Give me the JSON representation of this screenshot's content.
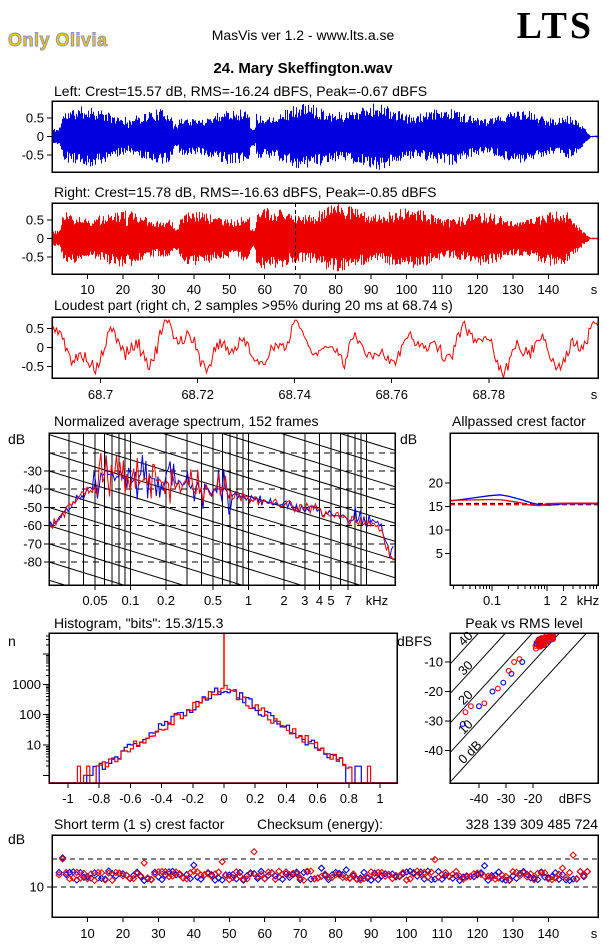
{
  "header": {
    "logo": "Only Olivia",
    "version_line": "MasVis ver 1.2 - www.lts.a.se",
    "brand": "LTS",
    "song_title": "24. Mary Skeffington.wav"
  },
  "colors": {
    "left_channel": "#0000e0",
    "right_channel": "#ee0000",
    "axis": "#000000",
    "logo_fill": "#f2c414",
    "logo_outline": "#8a93b5"
  },
  "chart_data": [
    {
      "id": "wave_left",
      "type": "waveform",
      "channel": "left",
      "label": "Left: Crest=15.57 dB, RMS=-16.24 dBFS, Peak=-0.67 dBFS",
      "stats": {
        "crest_db": 15.57,
        "rms_dbfs": -16.24,
        "peak_dbfs": -0.67
      },
      "yticks": [
        "0.5",
        "0",
        "-0.5"
      ],
      "ylim": [
        -0.95,
        0.95
      ],
      "duration_s": 154,
      "seed": 11,
      "envelope": {
        "intro_amp": 0.17,
        "intro_end_s": 3,
        "base_amp": 0.52,
        "dips": [
          [
            20.6,
            21.6,
            0.74
          ],
          [
            34.0,
            35.6,
            0.52
          ],
          [
            55.6,
            57.4,
            0.44
          ]
        ],
        "fade_start_s": 145.5,
        "end_amp": 0.02
      }
    },
    {
      "id": "wave_right",
      "type": "waveform",
      "channel": "right",
      "label": "Right: Crest=15.78 dB, RMS=-16.63 dBFS, Peak=-0.85 dBFS",
      "stats": {
        "crest_db": 15.78,
        "rms_dbfs": -16.63,
        "peak_dbfs": -0.85
      },
      "yticks": [
        "0.5",
        "0",
        "-0.5"
      ],
      "ylim": [
        -0.95,
        0.95
      ],
      "duration_s": 154,
      "seed": 77,
      "cursor_s": 68.74,
      "xticks": [
        10,
        20,
        30,
        40,
        50,
        60,
        70,
        80,
        90,
        100,
        110,
        120,
        130,
        140
      ],
      "x_unit": "s",
      "envelope": {
        "intro_amp": 0.17,
        "intro_end_s": 3,
        "base_amp": 0.52,
        "dips": [
          [
            20.6,
            21.6,
            0.76
          ],
          [
            34.0,
            35.6,
            0.55
          ],
          [
            55.6,
            57.4,
            0.46
          ]
        ],
        "fade_start_s": 145.5,
        "end_amp": 0.02
      }
    },
    {
      "id": "loudest",
      "type": "line",
      "title": "Loudest part (right ch, 2 samples >95% during 20 ms at 68.74 s)",
      "yticks": [
        "0.5",
        "0",
        "-0.5"
      ],
      "ylim": [
        -0.95,
        0.95
      ],
      "t_start": 68.69,
      "t_end": 68.8025,
      "xtick_labels": [
        "68.7",
        "68.72",
        "68.74",
        "68.76",
        "68.78"
      ],
      "xtick_values": [
        68.7,
        68.72,
        68.74,
        68.76,
        68.78
      ],
      "x_unit": "s",
      "seed": 5,
      "max_peak": 0.68,
      "min_peak": -0.85
    },
    {
      "id": "spectrum",
      "type": "line",
      "title": "Normalized average spectrum, 152 frames",
      "ylabel": "dB",
      "yticks": [
        -30,
        -40,
        -50,
        -60,
        -70,
        -80
      ],
      "ylim": [
        -93,
        -9
      ],
      "grid_dashed_db": [
        -20,
        -30,
        -40,
        -50,
        -60,
        -70,
        -80
      ],
      "xtick_labels": [
        "0.05",
        "0.1",
        "0.2",
        "0.5",
        "1",
        "2",
        "3",
        "4",
        "5",
        "7"
      ],
      "xtick_values": [
        0.05,
        0.1,
        0.2,
        0.5,
        1,
        2,
        3,
        4,
        5,
        7
      ],
      "x_unit": "kHz",
      "f_min": 0.0204,
      "f_max": 17.4,
      "diagonal_slope_db_per_decade": -20,
      "diagonal_spacing_db": 10,
      "anchors_khz_db": [
        [
          0.02,
          -61
        ],
        [
          0.028,
          -53
        ],
        [
          0.038,
          -44
        ],
        [
          0.05,
          -37
        ],
        [
          0.06,
          -33
        ],
        [
          0.1,
          -34
        ],
        [
          0.16,
          -35
        ],
        [
          0.25,
          -37
        ],
        [
          0.4,
          -40
        ],
        [
          0.63,
          -42
        ],
        [
          1,
          -45
        ],
        [
          1.6,
          -47
        ],
        [
          2.2,
          -49
        ],
        [
          3.2,
          -50
        ],
        [
          5,
          -54
        ],
        [
          8,
          -57
        ],
        [
          10.5,
          -59
        ],
        [
          12,
          -58
        ],
        [
          13.5,
          -62
        ],
        [
          15,
          -72
        ],
        [
          17.4,
          -83
        ]
      ],
      "seed": 5
    },
    {
      "id": "allpassed",
      "type": "line",
      "title": "Allpassed crest factor",
      "ylabel": "dB",
      "yticks": [
        20,
        15,
        10,
        5
      ],
      "ylim": [
        0,
        30
      ],
      "xtick_labels": [
        "0.1",
        "1",
        "2"
      ],
      "xtick_values": [
        0.1,
        1,
        2
      ],
      "x_unit": "kHz",
      "f_min": 0.0172,
      "f_max": 8.45,
      "series": {
        "blue": [
          [
            0.018,
            16.2
          ],
          [
            0.05,
            16.9
          ],
          [
            0.09,
            17.3
          ],
          [
            0.14,
            17.5
          ],
          [
            0.2,
            17.2
          ],
          [
            0.35,
            16.4
          ],
          [
            0.55,
            15.7
          ],
          [
            0.8,
            15.3
          ],
          [
            1.2,
            15.3
          ],
          [
            2,
            15.6
          ],
          [
            8.4,
            15.6
          ]
        ],
        "red": [
          [
            0.018,
            16.3
          ],
          [
            0.05,
            16.4
          ],
          [
            0.1,
            16.5
          ],
          [
            0.15,
            16.4
          ],
          [
            0.3,
            15.9
          ],
          [
            0.5,
            15.3
          ],
          [
            0.75,
            15.2
          ],
          [
            1,
            15.6
          ],
          [
            2,
            15.7
          ],
          [
            8.4,
            15.7
          ]
        ],
        "blue_dashed": 15.6,
        "red_dashed": 15.4
      }
    },
    {
      "id": "histogram",
      "type": "histogram",
      "title": "Histogram, \"bits\": 15.3/15.3",
      "ylabel": "n",
      "yticks": [
        1000,
        100,
        10
      ],
      "xtick_labels": [
        "-1",
        "-0.8",
        "-0.6",
        "-0.4",
        "-0.2",
        "0",
        "0.2",
        "0.4",
        "0.6",
        "0.8",
        "1"
      ],
      "xtick_values": [
        -1,
        -0.8,
        -0.6,
        -0.4,
        -0.2,
        0,
        0.2,
        0.4,
        0.6,
        0.8,
        1
      ],
      "bin_width": 0.02,
      "peak_n": 850,
      "decades_per_unit": 3.35,
      "tail_extent": 0.95,
      "spike_x": 0,
      "seed_blue": 21,
      "seed_red": 22
    },
    {
      "id": "peak_vs_rms",
      "type": "scatter",
      "title": "Peak vs RMS level",
      "ylabel": "dBFS",
      "yticks": [
        -10,
        -20,
        -30,
        -40
      ],
      "xticks": [
        -40,
        -30,
        -20
      ],
      "x_unit": "dBFS",
      "xlim": [
        -50.7,
        4.1
      ],
      "ylim": [
        -51,
        0
      ],
      "diagonals": [
        {
          "c": 40,
          "label": "40"
        },
        {
          "c": 30,
          "label": "30"
        },
        {
          "c": 20,
          "label": "20"
        },
        {
          "c": 10,
          "label": "10"
        },
        {
          "c": 0,
          "label": "0 dB"
        }
      ],
      "cluster": {
        "count": 46,
        "rms_center": -15.3,
        "crest_center": 13.2
      },
      "tail_red": [
        [
          -45,
          -27
        ],
        [
          -43,
          -25
        ],
        [
          -38,
          -24
        ],
        [
          -33,
          -19
        ],
        [
          -29,
          -13
        ],
        [
          -27,
          -10
        ],
        [
          -25,
          -9
        ]
      ],
      "tail_blue": [
        [
          -46,
          -31
        ],
        [
          -40,
          -25
        ],
        [
          -35,
          -20
        ],
        [
          -31,
          -17
        ],
        [
          -28,
          -14
        ],
        [
          -24,
          -10
        ]
      ],
      "seed_blue": 31,
      "seed_red": 32
    },
    {
      "id": "short_term",
      "type": "scatter",
      "title": "Short term (1 s) crest factor",
      "checksum_label": "Checksum (energy):",
      "checksum_value": "328 139 309 485 724",
      "ylabel": "dB",
      "ytick": "10",
      "dashed_db": [
        10,
        15
      ],
      "ylim": [
        4.6,
        19.3
      ],
      "xticks": [
        10,
        20,
        30,
        40,
        50,
        60,
        70,
        80,
        90,
        100,
        110,
        120,
        130,
        140
      ],
      "x_unit": "s",
      "duration_s": 154,
      "base_db": 12,
      "red_outliers": [
        [
          3,
          15.0
        ],
        [
          26,
          14.3
        ],
        [
          48,
          14.5
        ],
        [
          57,
          16.3
        ],
        [
          108,
          14.9
        ],
        [
          147,
          15.7
        ]
      ],
      "blue_outliers": [
        [
          3,
          15.2
        ],
        [
          40,
          13.9
        ],
        [
          122,
          13.8
        ]
      ],
      "seed_blue": 41,
      "seed_red": 42
    }
  ]
}
